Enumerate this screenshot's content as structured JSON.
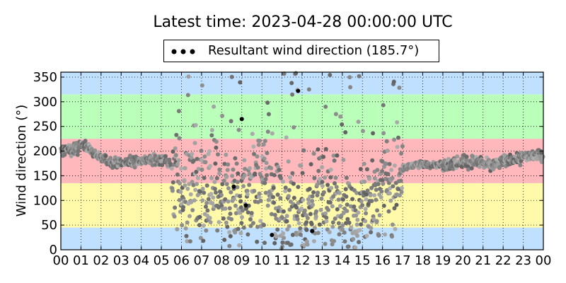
{
  "title": "Latest time: 2023-04-28 00:00:00 UTC",
  "legend": {
    "label": "Resultant wind direction (185.7°)"
  },
  "chart_data": {
    "type": "scatter",
    "title": "Latest time: 2023-04-28 00:00:00 UTC",
    "xlabel": "",
    "ylabel": "Wind direction (°)",
    "xlim": [
      0,
      24
    ],
    "ylim": [
      0,
      360
    ],
    "x_ticks": [
      0,
      1,
      2,
      3,
      4,
      5,
      6,
      7,
      8,
      9,
      10,
      11,
      12,
      13,
      14,
      15,
      16,
      17,
      18,
      19,
      20,
      21,
      22,
      23,
      24
    ],
    "x_tick_labels": [
      "00",
      "01",
      "02",
      "03",
      "04",
      "05",
      "06",
      "07",
      "08",
      "09",
      "10",
      "11",
      "12",
      "13",
      "14",
      "15",
      "16",
      "17",
      "18",
      "19",
      "20",
      "21",
      "22",
      "23",
      "00"
    ],
    "y_ticks": [
      0,
      50,
      100,
      150,
      200,
      250,
      300,
      350
    ],
    "y_tick_labels": [
      "0",
      "50",
      "100",
      "150",
      "200",
      "250",
      "300",
      "350"
    ],
    "grid": true,
    "legend_position": "top-center",
    "direction_bands": [
      {
        "from": 0,
        "to": 45,
        "color": "#bfe0ff"
      },
      {
        "from": 45,
        "to": 135,
        "color": "#fffaaa"
      },
      {
        "from": 135,
        "to": 225,
        "color": "#ffb8bc"
      },
      {
        "from": 225,
        "to": 315,
        "color": "#baffba"
      },
      {
        "from": 315,
        "to": 360,
        "color": "#bfe0ff"
      }
    ],
    "series": [
      {
        "name": "Resultant wind direction (185.7°)",
        "trend": [
          [
            0.0,
            200
          ],
          [
            0.5,
            203
          ],
          [
            0.9,
            205
          ],
          [
            1.2,
            215
          ],
          [
            1.5,
            200
          ],
          [
            2.0,
            185
          ],
          [
            2.5,
            178
          ],
          [
            3.0,
            175
          ],
          [
            3.5,
            178
          ],
          [
            4.0,
            182
          ],
          [
            4.5,
            182
          ],
          [
            5.0,
            183
          ],
          [
            5.3,
            180
          ],
          [
            5.6,
            160
          ],
          [
            6.0,
            120
          ],
          [
            6.5,
            110
          ],
          [
            7.0,
            110
          ],
          [
            7.5,
            100
          ],
          [
            8.0,
            95
          ],
          [
            8.5,
            100
          ],
          [
            9.0,
            110
          ],
          [
            9.5,
            120
          ],
          [
            10.0,
            130
          ],
          [
            10.5,
            120
          ],
          [
            11.0,
            90
          ],
          [
            11.5,
            60
          ],
          [
            12.0,
            70
          ],
          [
            12.5,
            90
          ],
          [
            13.0,
            110
          ],
          [
            13.5,
            100
          ],
          [
            14.0,
            80
          ],
          [
            14.5,
            70
          ],
          [
            15.0,
            80
          ],
          [
            15.5,
            100
          ],
          [
            16.0,
            120
          ],
          [
            16.5,
            140
          ],
          [
            17.0,
            165
          ],
          [
            17.5,
            172
          ],
          [
            18.0,
            173
          ],
          [
            18.5,
            173
          ],
          [
            19.0,
            172
          ],
          [
            19.5,
            175
          ],
          [
            20.0,
            178
          ],
          [
            20.5,
            180
          ],
          [
            21.0,
            175
          ],
          [
            21.5,
            172
          ],
          [
            22.0,
            180
          ],
          [
            22.5,
            182
          ],
          [
            23.0,
            188
          ],
          [
            23.5,
            193
          ],
          [
            24.0,
            192
          ]
        ],
        "highlights": [
          [
            9.0,
            265
          ],
          [
            10.5,
            30
          ],
          [
            11.8,
            322
          ],
          [
            12.5,
            38
          ],
          [
            8.6,
            128
          ],
          [
            9.2,
            90
          ]
        ]
      }
    ]
  }
}
